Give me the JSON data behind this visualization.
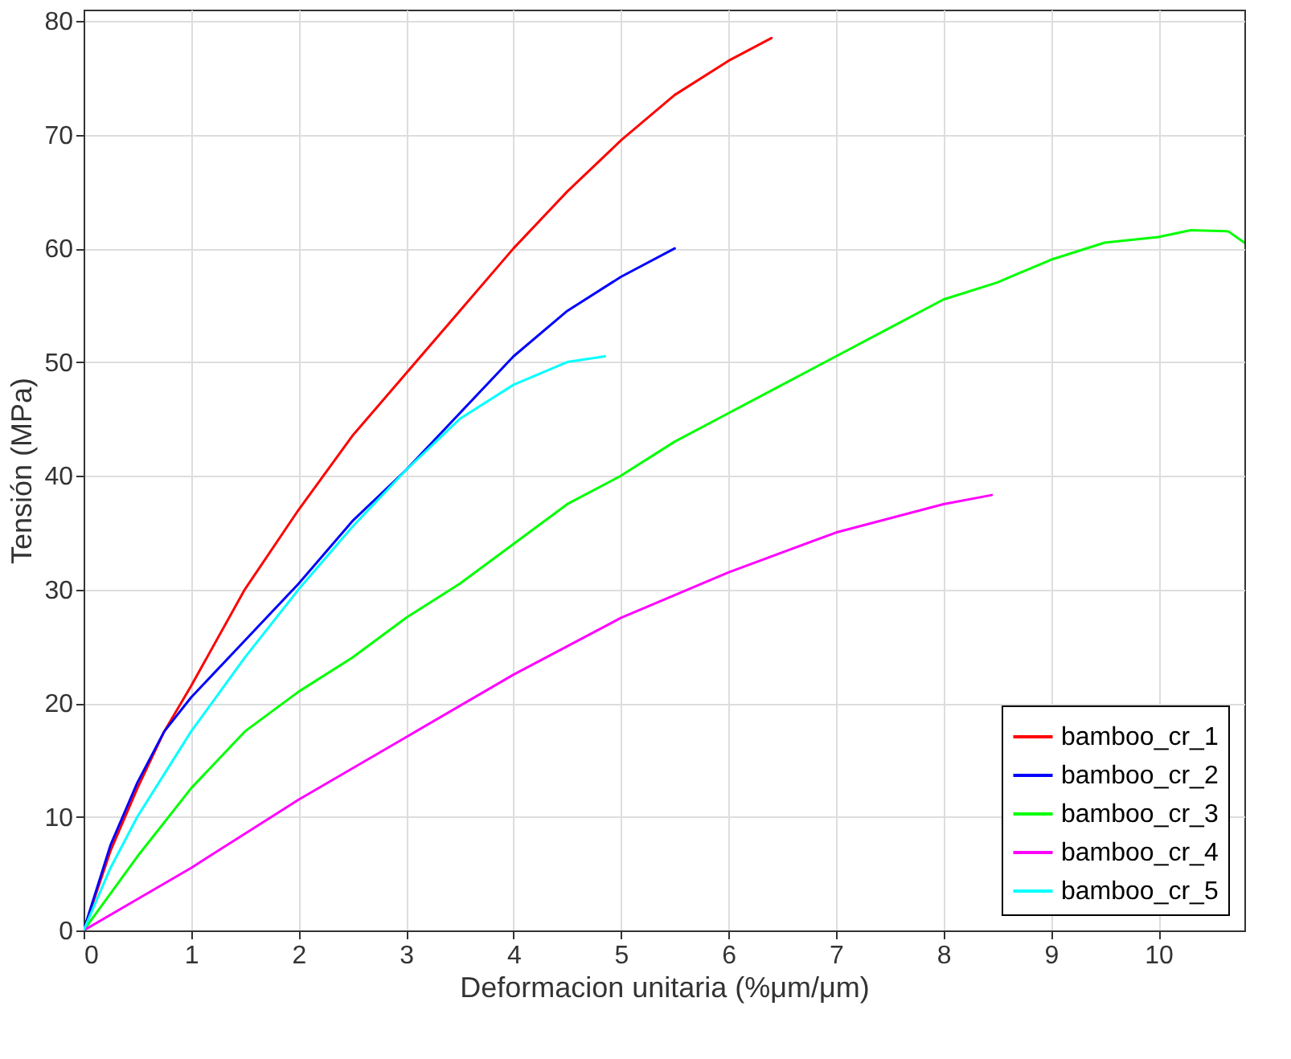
{
  "chart_data": {
    "type": "line",
    "xlabel": "Deformacion unitaria (%μm/μm)",
    "ylabel": "Tensión (MPa)",
    "xlim": [
      0,
      10.8
    ],
    "xticks": [
      0,
      1,
      2,
      3,
      4,
      5,
      6,
      7,
      8,
      9,
      10
    ],
    "ylim": [
      0,
      81
    ],
    "yticks": [
      0,
      10,
      20,
      30,
      40,
      50,
      60,
      70,
      80
    ],
    "grid": true,
    "legend": "bottom right",
    "line_style": "solid",
    "series": [
      {
        "name": "bamboo_cr_1",
        "color": "#ff0000",
        "x": [
          0,
          0.25,
          0.5,
          0.75,
          1,
          1.5,
          2,
          2.5,
          3,
          3.5,
          4,
          4.5,
          5,
          5.5,
          6,
          6.4
        ],
        "values": [
          0,
          7,
          12.5,
          17.5,
          21.5,
          30,
          37,
          43.5,
          49,
          54.5,
          60,
          65,
          69.5,
          73.5,
          76.5,
          78.5
        ]
      },
      {
        "name": "bamboo_cr_2",
        "color": "#0000ff",
        "x": [
          0,
          0.25,
          0.5,
          0.75,
          1,
          1.5,
          2,
          2.5,
          3,
          3.5,
          4,
          4.5,
          5,
          5.5
        ],
        "values": [
          0,
          7.5,
          13,
          17.5,
          20.5,
          25.5,
          30.5,
          36,
          40.5,
          45.5,
          50.5,
          54.5,
          57.5,
          60
        ]
      },
      {
        "name": "bamboo_cr_3",
        "color": "#00ff00",
        "x": [
          0,
          0.5,
          1,
          1.5,
          2,
          2.5,
          3,
          3.5,
          4,
          4.5,
          5,
          5.5,
          6,
          6.5,
          7,
          7.5,
          8,
          8.5,
          9,
          9.5,
          10,
          10.3,
          10.65,
          10.8
        ],
        "values": [
          0,
          6.5,
          12.5,
          17.5,
          21,
          24,
          27.5,
          30.5,
          34,
          37.5,
          40,
          43,
          45.5,
          48,
          50.5,
          53,
          55.5,
          57,
          59,
          60.5,
          61,
          61.6,
          61.5,
          60.5
        ]
      },
      {
        "name": "bamboo_cr_4",
        "color": "#ff00ff",
        "x": [
          0,
          1,
          2,
          3,
          4,
          5,
          6,
          7,
          8,
          8.45
        ],
        "values": [
          0,
          5.5,
          11.5,
          17,
          22.5,
          27.5,
          31.5,
          35,
          37.5,
          38.3
        ]
      },
      {
        "name": "bamboo_cr_5",
        "color": "#00ffff",
        "x": [
          0,
          0.25,
          0.5,
          1,
          1.5,
          2,
          2.5,
          3,
          3.5,
          4,
          4.5,
          4.85
        ],
        "values": [
          0,
          5.5,
          10,
          17.5,
          24,
          30,
          35.5,
          40.5,
          45,
          48,
          50,
          50.5
        ]
      }
    ]
  }
}
